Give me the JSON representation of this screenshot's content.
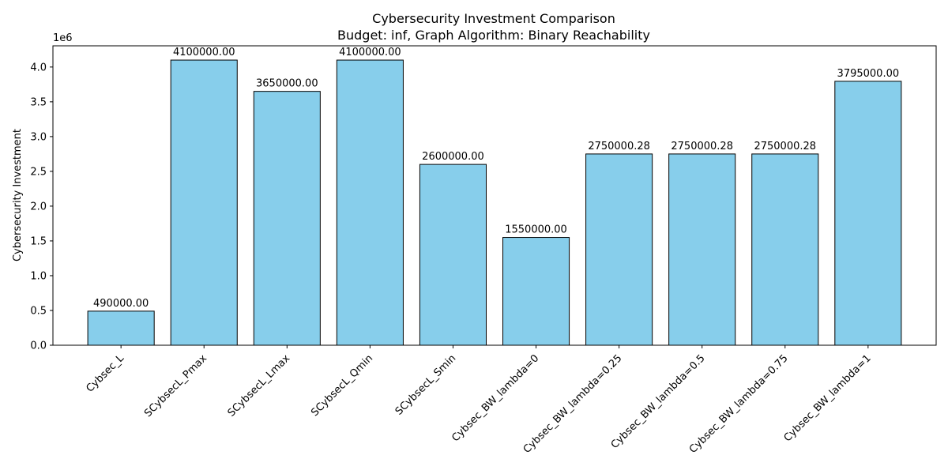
{
  "chart_data": {
    "type": "bar",
    "title": "Cybersecurity Investment Comparison",
    "subtitle": "Budget: inf, Graph Algorithm: Binary Reachability",
    "xlabel": "",
    "ylabel": "Cybersecurity Investment",
    "y_offset_label": "1e6",
    "ylim": [
      0,
      4305000
    ],
    "y_ticks": [
      0,
      500000,
      1000000,
      1500000,
      2000000,
      2500000,
      3000000,
      3500000,
      4000000
    ],
    "y_tick_labels": [
      "0.0",
      "0.5",
      "1.0",
      "1.5",
      "2.0",
      "2.5",
      "3.0",
      "3.5",
      "4.0"
    ],
    "categories": [
      "Cybsec_L",
      "SCybsecL_Pmax",
      "SCybsecL_Lmax",
      "SCybsecL_Qmin",
      "SCybsecL_Smin",
      "Cybsec_BW_lambda=0",
      "Cybsec_BW_lambda=0.25",
      "Cybsec_BW_lambda=0.5",
      "Cybsec_BW_lambda=0.75",
      "Cybsec_BW_lambda=1"
    ],
    "values": [
      490000,
      4100000,
      3650000,
      4100000,
      2600000,
      1550000,
      2750000.28,
      2750000.28,
      2750000.28,
      3795000
    ],
    "data_labels": [
      "490000.00",
      "4100000.00",
      "3650000.00",
      "4100000.00",
      "2600000.00",
      "1550000.00",
      "2750000.28",
      "2750000.28",
      "2750000.28",
      "3795000.00"
    ],
    "bar_color": "#87ceeb",
    "bar_edge_color": "#000000",
    "grid": false,
    "legend": "none"
  }
}
